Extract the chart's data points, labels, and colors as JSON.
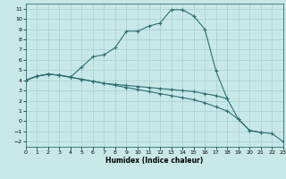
{
  "xlabel": "Humidex (Indice chaleur)",
  "xlim": [
    0,
    23
  ],
  "ylim": [
    -2.5,
    11.5
  ],
  "xticks": [
    0,
    1,
    2,
    3,
    4,
    5,
    6,
    7,
    8,
    9,
    10,
    11,
    12,
    13,
    14,
    15,
    16,
    17,
    18,
    19,
    20,
    21,
    22,
    23
  ],
  "yticks": [
    -2,
    -1,
    0,
    1,
    2,
    3,
    4,
    5,
    6,
    7,
    8,
    9,
    10,
    11
  ],
  "bg_color": "#c8e8e8",
  "line_color": "#2a7070",
  "grid_color": "#a8cece",
  "curve1_x": [
    0,
    1,
    2,
    3,
    4,
    5,
    6,
    7,
    8,
    9,
    10,
    11,
    12,
    13,
    14,
    15,
    16,
    17,
    18
  ],
  "curve1_y": [
    4.0,
    4.4,
    4.6,
    4.5,
    4.3,
    5.3,
    6.3,
    6.5,
    7.2,
    8.8,
    8.8,
    9.3,
    9.6,
    10.9,
    10.9,
    10.3,
    9.0,
    4.9,
    2.2
  ],
  "curve2_x": [
    0,
    1,
    2,
    3,
    4,
    5,
    6,
    7,
    8,
    9,
    10,
    11,
    12,
    13,
    14,
    15,
    16,
    17,
    18,
    19,
    20,
    21
  ],
  "curve2_y": [
    4.0,
    4.4,
    4.6,
    4.5,
    4.3,
    4.1,
    3.9,
    3.7,
    3.6,
    3.5,
    3.4,
    3.3,
    3.2,
    3.1,
    3.0,
    2.9,
    2.7,
    2.5,
    2.2,
    0.2,
    -0.9,
    -1.1
  ],
  "curve3_x": [
    0,
    1,
    2,
    3,
    4,
    5,
    6,
    7,
    8,
    9,
    10,
    11,
    12,
    13,
    14,
    15,
    16,
    17,
    18,
    19,
    20,
    21,
    22,
    23
  ],
  "curve3_y": [
    4.0,
    4.4,
    4.6,
    4.5,
    4.3,
    4.1,
    3.9,
    3.7,
    3.5,
    3.3,
    3.1,
    2.9,
    2.7,
    2.5,
    2.3,
    2.1,
    1.8,
    1.4,
    1.0,
    0.2,
    -0.9,
    -1.1,
    -1.2,
    -2.0
  ]
}
